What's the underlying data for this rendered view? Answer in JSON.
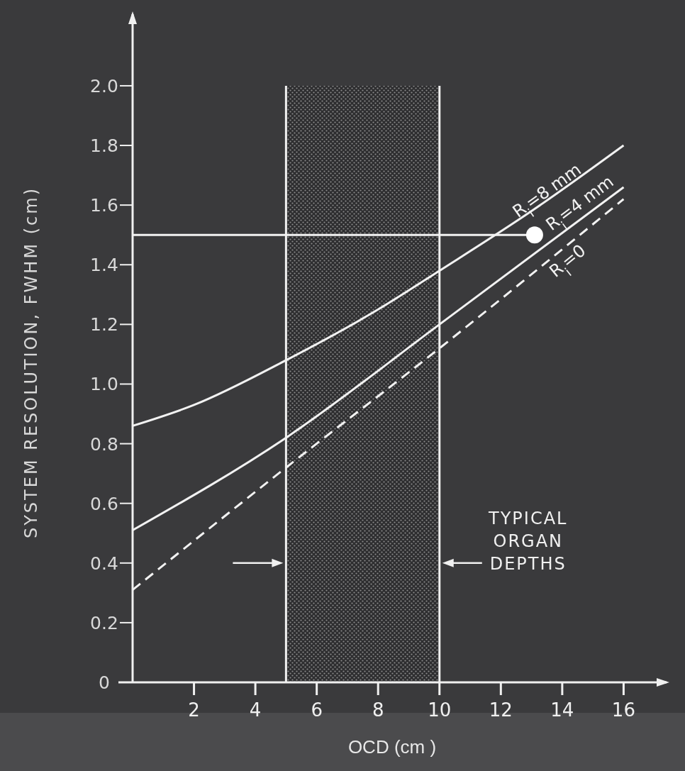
{
  "chart_data": {
    "type": "line",
    "xlabel": "OCD (cm )",
    "ylabel": "SYSTEM RESOLUTION, FWHM (cm)",
    "xlim": [
      0,
      17.4
    ],
    "ylim": [
      0,
      2.24
    ],
    "xticks": [
      2,
      4,
      6,
      8,
      10,
      12,
      14,
      16
    ],
    "yticks": [
      0,
      0.2,
      0.4,
      0.6,
      0.8,
      {
        "value": 1,
        "label": "1.0"
      },
      1.2,
      1.4,
      1.6,
      1.8,
      {
        "value": 2,
        "label": "2.0"
      }
    ],
    "marker": "none",
    "series": [
      {
        "name": "R$_{i}$=8 mm",
        "color": "#f2f2f2",
        "line_style": "solid",
        "x": [
          0,
          2,
          5,
          8,
          10,
          13,
          16
        ],
        "values": [
          0.86,
          0.93,
          1.08,
          1.25,
          1.38,
          1.58,
          1.8
        ]
      },
      {
        "name": "R$_{i}$=4 mm",
        "color": "#f2f2f2",
        "line_style": "solid",
        "x": [
          0,
          5,
          10,
          16
        ],
        "values": [
          0.51,
          0.82,
          1.2,
          1.66
        ]
      },
      {
        "name": "R$_{i}$=0",
        "color": "#f2f2f2",
        "line_style": "dashed",
        "x": [
          0,
          5,
          10,
          16
        ],
        "values": [
          0.31,
          0.72,
          1.12,
          1.62
        ]
      },
      {
        "type": "line",
        "color": "#f2f2f2",
        "line_style": "solid",
        "x": [
          0,
          13.1
        ],
        "values": [
          1.5,
          1.5
        ]
      },
      {
        "type": "scatter",
        "color": "#ffffff",
        "marker": "circle",
        "x": [
          13.1
        ],
        "values": [
          1.5
        ]
      }
    ],
    "bands": [
      {
        "axis": "x",
        "from": 5,
        "to": 10,
        "label": "TYPICAL ORGAN DEPTHS",
        "color": "#8a8a8a"
      }
    ]
  }
}
